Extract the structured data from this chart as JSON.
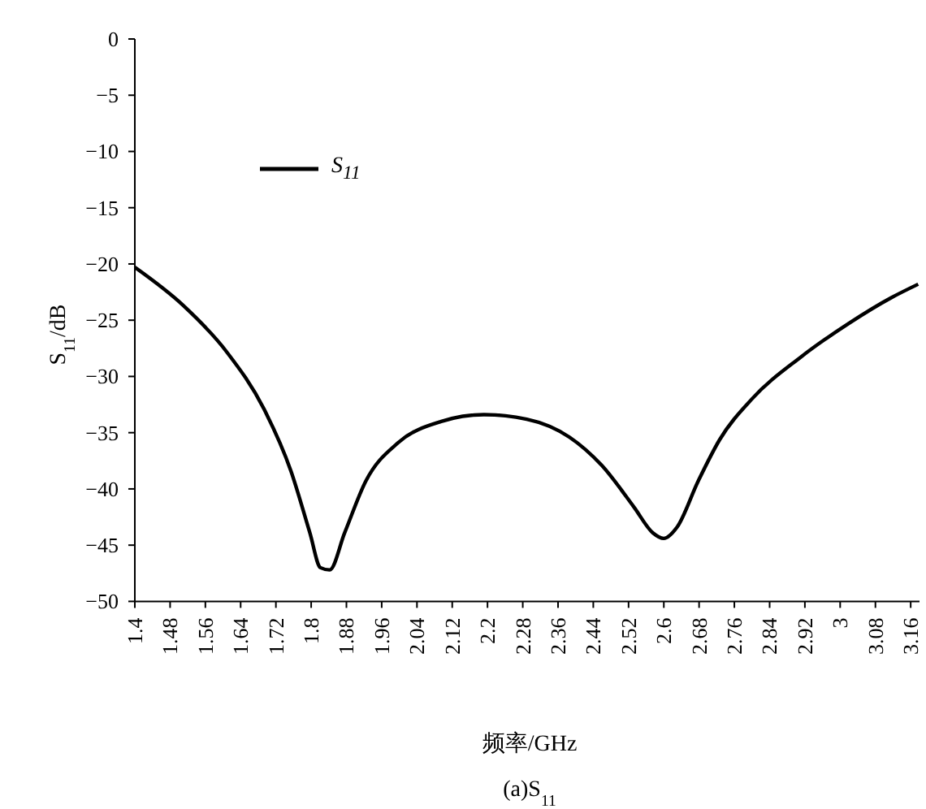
{
  "chart_data": {
    "type": "line",
    "xlabel": "频率/GHz",
    "ylabel": "S$_{11}$/dB",
    "annotations": [
      "(a)S$_{11}$"
    ],
    "xlim": [
      1.4,
      3.18
    ],
    "xticks": [
      1.4,
      1.48,
      1.56,
      1.64,
      1.72,
      1.8,
      1.88,
      1.96,
      2.04,
      2.12,
      2.2,
      2.28,
      2.36,
      2.44,
      2.52,
      2.6,
      2.68,
      2.76,
      2.84,
      2.92,
      3,
      3.08,
      3.16
    ],
    "ylim": [
      -50,
      0
    ],
    "yticks": [
      -50,
      -45,
      -40,
      -35,
      -30,
      -25,
      -20,
      -15,
      -10,
      -5,
      0
    ],
    "grid": false,
    "legend": "top left",
    "marker": "none",
    "line_style": "solid",
    "series": [
      {
        "name": "S$_{11}$",
        "color": "#000000",
        "x": [
          1.4,
          1.51,
          1.608,
          1.693,
          1.754,
          1.797,
          1.821,
          1.842,
          1.876,
          1.924,
          1.997,
          2.095,
          2.192,
          2.289,
          2.386,
          2.459,
          2.532,
          2.575,
          2.6,
          2.63,
          2.678,
          2.727,
          2.8,
          2.91,
          3.019,
          3.116,
          3.177
        ],
        "values": [
          -20.3,
          -23.7,
          -27.8,
          -32.9,
          -38.4,
          -43.9,
          -47.0,
          -47.2,
          -43.9,
          -39.3,
          -35.9,
          -34.0,
          -33.4,
          -33.8,
          -35.4,
          -37.9,
          -41.6,
          -43.9,
          -44.4,
          -43.4,
          -39.3,
          -35.6,
          -32.0,
          -28.3,
          -25.3,
          -23.0,
          -21.8
        ]
      }
    ]
  }
}
